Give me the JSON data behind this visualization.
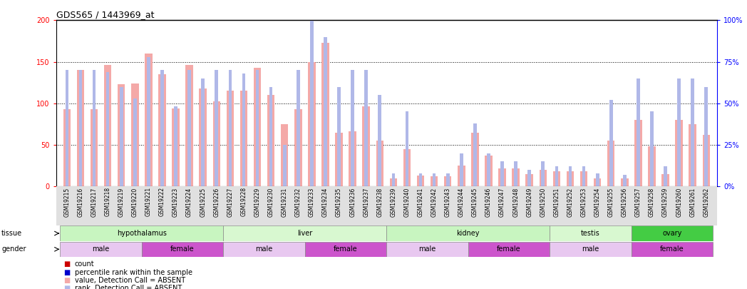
{
  "title": "GDS565 / 1443969_at",
  "samples": [
    "GSM19215",
    "GSM19216",
    "GSM19217",
    "GSM19218",
    "GSM19219",
    "GSM19220",
    "GSM19221",
    "GSM19222",
    "GSM19223",
    "GSM19224",
    "GSM19225",
    "GSM19226",
    "GSM19227",
    "GSM19228",
    "GSM19229",
    "GSM19230",
    "GSM19231",
    "GSM19232",
    "GSM19233",
    "GSM19234",
    "GSM19235",
    "GSM19236",
    "GSM19237",
    "GSM19238",
    "GSM19239",
    "GSM19240",
    "GSM19241",
    "GSM19242",
    "GSM19243",
    "GSM19244",
    "GSM19245",
    "GSM19246",
    "GSM19247",
    "GSM19248",
    "GSM19249",
    "GSM19250",
    "GSM19251",
    "GSM19252",
    "GSM19253",
    "GSM19254",
    "GSM19255",
    "GSM19256",
    "GSM19257",
    "GSM19258",
    "GSM19259",
    "GSM19260",
    "GSM19261",
    "GSM19262"
  ],
  "count_values": [
    93,
    140,
    93,
    146,
    123,
    124,
    160,
    135,
    94,
    146,
    118,
    102,
    115,
    115,
    143,
    110,
    75,
    93,
    150,
    173,
    65,
    66,
    96,
    55,
    10,
    45,
    13,
    12,
    12,
    25,
    65,
    37,
    22,
    22,
    15,
    20,
    18,
    18,
    18,
    10,
    55,
    10,
    80,
    48,
    15,
    80,
    75,
    62
  ],
  "rank_values": [
    70,
    70,
    70,
    69,
    60,
    53,
    78,
    70,
    48,
    70,
    65,
    70,
    70,
    68,
    70,
    60,
    25,
    70,
    100,
    90,
    60,
    70,
    70,
    55,
    8,
    45,
    8,
    8,
    8,
    20,
    38,
    20,
    15,
    15,
    10,
    15,
    12,
    12,
    12,
    8,
    52,
    7,
    65,
    45,
    12,
    65,
    65,
    60
  ],
  "tissues": [
    {
      "label": "hypothalamus",
      "start": 0,
      "end": 12,
      "color": "#c8f5c0"
    },
    {
      "label": "liver",
      "start": 12,
      "end": 24,
      "color": "#d8f8d0"
    },
    {
      "label": "kidney",
      "start": 24,
      "end": 36,
      "color": "#c8f5c0"
    },
    {
      "label": "testis",
      "start": 36,
      "end": 42,
      "color": "#d8f8d0"
    },
    {
      "label": "ovary",
      "start": 42,
      "end": 48,
      "color": "#44cc44"
    }
  ],
  "genders": [
    {
      "label": "male",
      "start": 0,
      "end": 6,
      "color": "#e8c8f0"
    },
    {
      "label": "female",
      "start": 6,
      "end": 12,
      "color": "#cc55cc"
    },
    {
      "label": "male",
      "start": 12,
      "end": 18,
      "color": "#e8c8f0"
    },
    {
      "label": "female",
      "start": 18,
      "end": 24,
      "color": "#cc55cc"
    },
    {
      "label": "male",
      "start": 24,
      "end": 30,
      "color": "#e8c8f0"
    },
    {
      "label": "female",
      "start": 30,
      "end": 36,
      "color": "#cc55cc"
    },
    {
      "label": "male",
      "start": 36,
      "end": 42,
      "color": "#e8c8f0"
    },
    {
      "label": "female",
      "start": 42,
      "end": 48,
      "color": "#cc55cc"
    }
  ],
  "bar_color_count": "#f4a9a8",
  "bar_color_rank": "#b0b8e8",
  "ylim_left": [
    0,
    200
  ],
  "ylim_right": [
    0,
    100
  ],
  "yticks_left": [
    0,
    50,
    100,
    150,
    200
  ],
  "yticks_right": [
    0,
    25,
    50,
    75,
    100
  ],
  "grid_lines": [
    50,
    100,
    150
  ],
  "legend_items": [
    {
      "label": "count",
      "color": "#cc0000"
    },
    {
      "label": "percentile rank within the sample",
      "color": "#0000cc"
    },
    {
      "label": "value, Detection Call = ABSENT",
      "color": "#f4a9a8"
    },
    {
      "label": "rank, Detection Call = ABSENT",
      "color": "#b0b8e8"
    }
  ]
}
